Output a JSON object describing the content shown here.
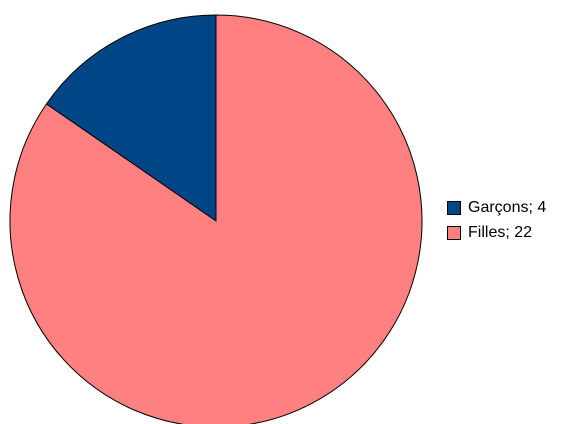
{
  "chart_data": {
    "type": "pie",
    "title": "",
    "slices": [
      {
        "label": "Garçons",
        "value": 4,
        "legend_text": "Garçons; 4",
        "color": "#004586"
      },
      {
        "label": "Filles",
        "value": 22,
        "legend_text": "Filles; 22",
        "color": "#ff8080"
      }
    ],
    "legend_position": "right",
    "start_angle_deg": 0,
    "direction": "counterclockwise"
  }
}
